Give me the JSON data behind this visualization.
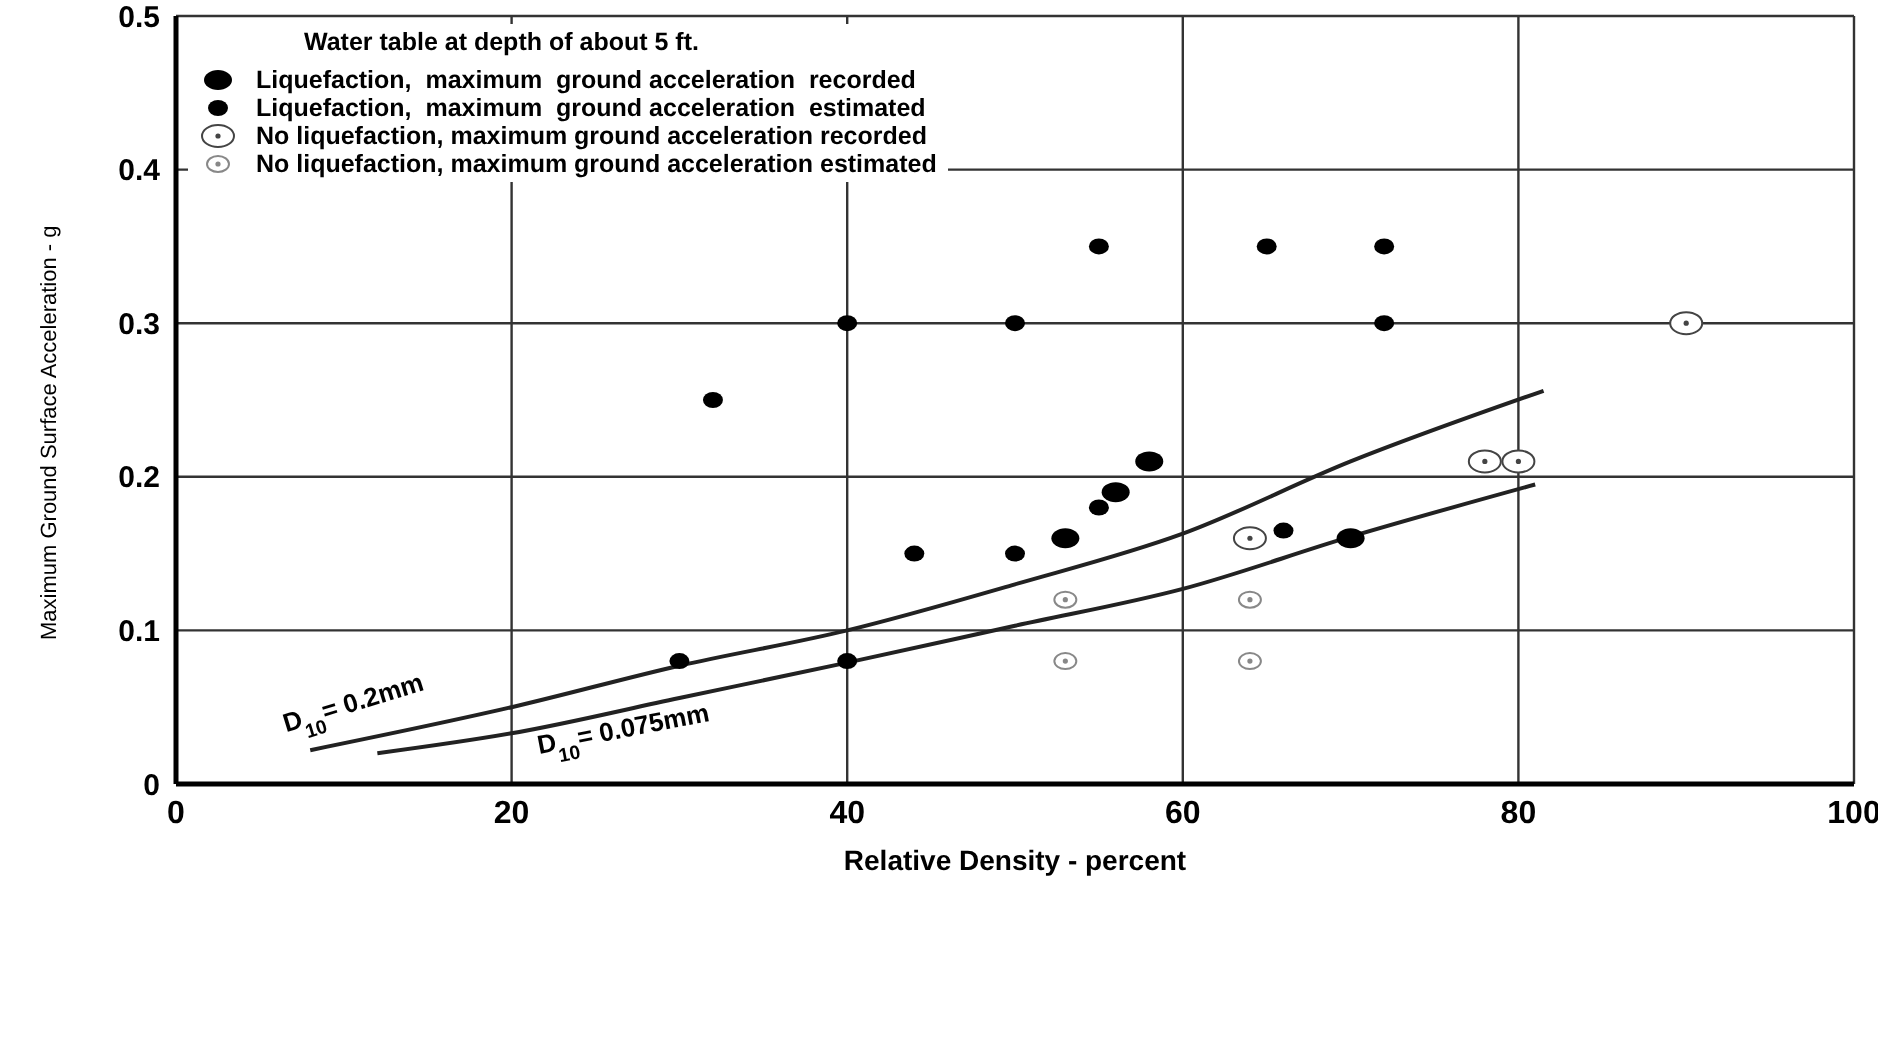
{
  "chart_data": {
    "type": "scatter",
    "xlabel": "Relative Density - percent",
    "ylabel": "Maximum Ground Surface Acceleration - g",
    "legend_title": "Water table at depth of about 5 ft.",
    "xlim": [
      0,
      100
    ],
    "xticks": [
      0,
      20,
      40,
      60,
      80,
      100
    ],
    "ylim": [
      0,
      0.5
    ],
    "yticks": [
      0,
      0.1,
      0.2,
      0.3,
      0.4,
      0.5
    ],
    "grid": true,
    "legend": "top left",
    "marker": "circle",
    "series": [
      {
        "name": "Liquefaction,  maximum  ground acceleration  recorded",
        "color": "#000000",
        "x": [
          58,
          56,
          53,
          70
        ],
        "values": [
          0.21,
          0.19,
          0.16,
          0.16
        ]
      },
      {
        "name": "Liquefaction,  maximum  ground acceleration  estimated",
        "color": "#000000",
        "x": [
          32,
          40,
          50,
          55,
          65,
          72,
          72,
          44,
          50,
          55,
          66,
          30,
          40
        ],
        "values": [
          0.25,
          0.3,
          0.3,
          0.35,
          0.35,
          0.35,
          0.3,
          0.15,
          0.15,
          0.18,
          0.165,
          0.08,
          0.08
        ]
      },
      {
        "name": "No liquefaction, maximum ground acceleration recorded",
        "color": "#444444",
        "x": [
          90,
          78,
          80,
          64
        ],
        "values": [
          0.3,
          0.21,
          0.21,
          0.16
        ]
      },
      {
        "name": "No liquefaction, maximum ground acceleration estimated",
        "color": "#888888",
        "x": [
          53,
          53,
          64,
          64
        ],
        "values": [
          0.12,
          0.08,
          0.12,
          0.08
        ]
      },
      {
        "name": "D$_{10}$= 0.2mm",
        "type": "line",
        "marker": "none",
        "color": "#222222",
        "x": [
          8,
          20,
          30,
          40,
          50,
          60,
          70,
          81.5
        ],
        "values": [
          0.022,
          0.05,
          0.077,
          0.1,
          0.13,
          0.163,
          0.21,
          0.256
        ]
      },
      {
        "name": "D$_{10}$= 0.075mm",
        "type": "line",
        "marker": "none",
        "color": "#222222",
        "x": [
          12,
          20,
          30,
          40,
          50,
          60,
          70,
          81
        ],
        "values": [
          0.02,
          0.033,
          0.056,
          0.079,
          0.103,
          0.127,
          0.161,
          0.195
        ]
      }
    ]
  }
}
